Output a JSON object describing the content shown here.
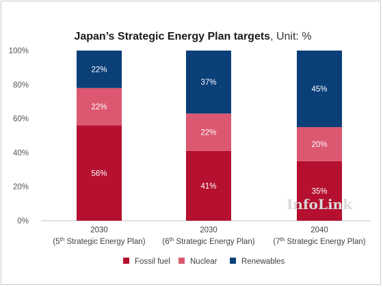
{
  "chart_data": {
    "type": "bar",
    "stacked": true,
    "title": "Japan’s Strategic Energy Plan targets",
    "title_unit": ", Unit: %",
    "ylim": [
      0,
      100
    ],
    "yticks": [
      "0%",
      "20%",
      "40%",
      "60%",
      "80%",
      "100%"
    ],
    "categories": [
      {
        "year": "2030",
        "base": "(5",
        "sup": "th",
        "rest": " Strategic Energy Plan)"
      },
      {
        "year": "2030",
        "base": "(6",
        "sup": "th",
        "rest": " Strategic Energy Plan)"
      },
      {
        "year": "2040",
        "base": "(7",
        "sup": "th",
        "rest": " Strategic Energy Plan)"
      }
    ],
    "series": [
      {
        "name": "Fossil fuel",
        "color": "#b5102f",
        "values": [
          56,
          41,
          35
        ],
        "labels": [
          "56%",
          "41%",
          "35%"
        ]
      },
      {
        "name": "Nuclear",
        "color": "#dc5770",
        "values": [
          22,
          22,
          20
        ],
        "labels": [
          "22%",
          "22%",
          "20%"
        ]
      },
      {
        "name": "Renewables",
        "color": "#0a3f78",
        "values": [
          22,
          37,
          45
        ],
        "labels": [
          "22%",
          "37%",
          "45%"
        ]
      }
    ],
    "legend_position": "bottom",
    "grid": false
  },
  "watermark": "InfoLink"
}
